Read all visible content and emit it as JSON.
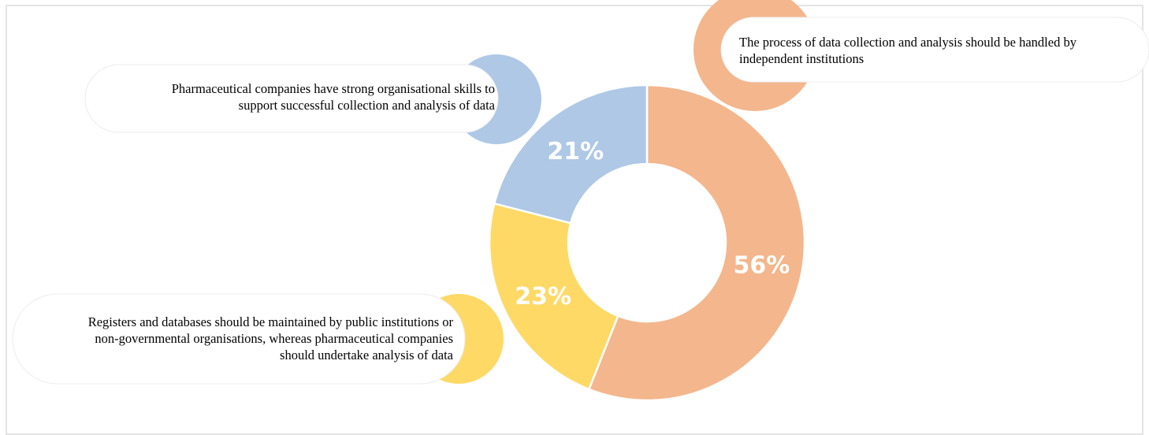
{
  "chart_data": {
    "type": "pie",
    "variant": "donut",
    "title": "",
    "start_angle_deg": 0,
    "direction": "clockwise",
    "slices": [
      {
        "label": "The process of data collection and analysis  should be handled by independent institutions",
        "label_lines": [
          "The process of data collection and analysis  should be handled by",
          "independent institutions"
        ],
        "value": 56,
        "value_label": "56%",
        "color": "#f4b68c"
      },
      {
        "label": "Registers and databases should be maintained  by public institutions  or non-governmental organisations, whereas pharmaceutical companies should undertake analysis  of data",
        "label_lines": [
          "Registers and databases should be maintained  by public institutions  or",
          "non-governmental  organisations, whereas pharmaceutical companies",
          "should undertake analysis  of data"
        ],
        "value": 23,
        "value_label": "23%",
        "color": "#ffd966"
      },
      {
        "label": "Pharmaceutical  companies have strong organisational  skills  to support successful collection and analysis  of data",
        "label_lines": [
          "Pharmaceutical  companies have strong organisational  skills  to",
          "support successful collection and analysis  of data"
        ],
        "value": 21,
        "value_label": "21%",
        "color": "#aec8e6"
      }
    ],
    "value_label_color": "#ffffff",
    "legend": "callouts"
  }
}
